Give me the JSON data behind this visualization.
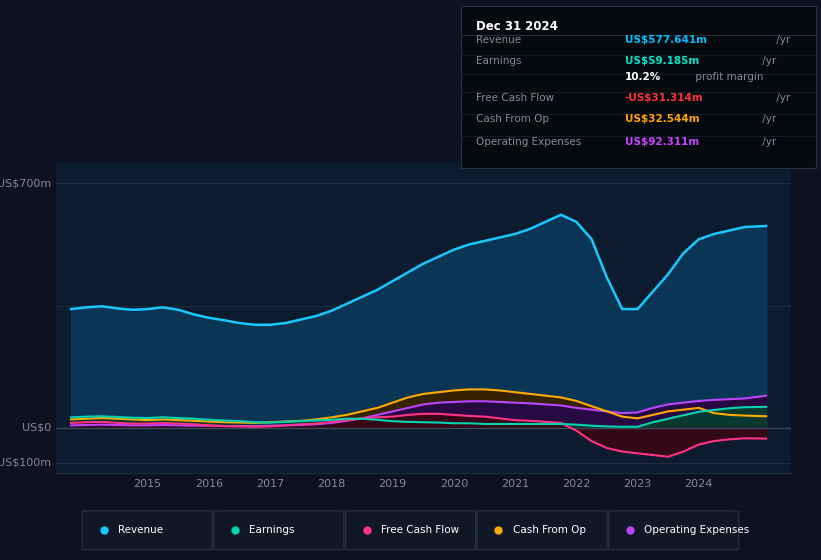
{
  "bg_color": "#0c1220",
  "plot_bg_color": "#0d1b2e",
  "title_box_bg": "#080c10",
  "title_box": {
    "date": "Dec 31 2024",
    "rows": [
      {
        "label": "Revenue",
        "value": "US$577.641m",
        "unit": " /yr",
        "value_color": "#00bfff"
      },
      {
        "label": "Earnings",
        "value": "US$59.185m",
        "unit": " /yr",
        "value_color": "#00e5cc"
      },
      {
        "label": "",
        "value": "10.2%",
        "unit": " profit margin",
        "value_color": "#ffffff"
      },
      {
        "label": "Free Cash Flow",
        "value": "-US$31.314m",
        "unit": " /yr",
        "value_color": "#ff3333"
      },
      {
        "label": "Cash From Op",
        "value": "US$32.544m",
        "unit": " /yr",
        "value_color": "#ffa500"
      },
      {
        "label": "Operating Expenses",
        "value": "US$92.311m",
        "unit": " /yr",
        "value_color": "#cc44ff"
      }
    ]
  },
  "y_label_top": "US$700m",
  "y_label_zero": "US$0",
  "y_label_neg": "-US$100m",
  "x_ticks": [
    "2015",
    "2016",
    "2017",
    "2018",
    "2019",
    "2020",
    "2021",
    "2022",
    "2023",
    "2024"
  ],
  "ylim": [
    -130,
    760
  ],
  "xlim": [
    2013.5,
    2025.5
  ],
  "revenue": {
    "x": [
      2013.75,
      2014.0,
      2014.25,
      2014.5,
      2014.75,
      2015.0,
      2015.25,
      2015.5,
      2015.75,
      2016.0,
      2016.25,
      2016.5,
      2016.75,
      2017.0,
      2017.25,
      2017.5,
      2017.75,
      2018.0,
      2018.25,
      2018.5,
      2018.75,
      2019.0,
      2019.25,
      2019.5,
      2019.75,
      2020.0,
      2020.25,
      2020.5,
      2020.75,
      2021.0,
      2021.25,
      2021.5,
      2021.75,
      2022.0,
      2022.25,
      2022.5,
      2022.75,
      2023.0,
      2023.25,
      2023.5,
      2023.75,
      2024.0,
      2024.25,
      2024.5,
      2024.75,
      2025.1
    ],
    "y": [
      340,
      345,
      348,
      342,
      338,
      340,
      345,
      338,
      325,
      315,
      308,
      300,
      295,
      295,
      300,
      310,
      320,
      335,
      355,
      375,
      395,
      420,
      445,
      470,
      490,
      510,
      525,
      535,
      545,
      555,
      570,
      590,
      610,
      590,
      540,
      430,
      340,
      340,
      390,
      440,
      500,
      540,
      555,
      565,
      575,
      578
    ],
    "color": "#18c8ff",
    "fill_color": "#0a3555",
    "linewidth": 1.8
  },
  "earnings": {
    "x": [
      2013.75,
      2014.0,
      2014.25,
      2014.5,
      2014.75,
      2015.0,
      2015.25,
      2015.5,
      2015.75,
      2016.0,
      2016.25,
      2016.5,
      2016.75,
      2017.0,
      2017.25,
      2017.5,
      2017.75,
      2018.0,
      2018.25,
      2018.5,
      2018.75,
      2019.0,
      2019.25,
      2019.5,
      2019.75,
      2020.0,
      2020.25,
      2020.5,
      2020.75,
      2021.0,
      2021.25,
      2021.5,
      2021.75,
      2022.0,
      2022.25,
      2022.5,
      2022.75,
      2023.0,
      2023.25,
      2023.5,
      2023.75,
      2024.0,
      2024.25,
      2024.5,
      2024.75,
      2025.1
    ],
    "y": [
      30,
      32,
      33,
      31,
      29,
      28,
      30,
      28,
      26,
      23,
      21,
      19,
      16,
      15,
      17,
      19,
      21,
      23,
      26,
      26,
      23,
      19,
      17,
      16,
      15,
      13,
      13,
      11,
      11,
      11,
      11,
      11,
      11,
      9,
      6,
      4,
      3,
      3,
      16,
      26,
      36,
      46,
      51,
      56,
      59,
      60
    ],
    "color": "#00d4b0",
    "fill_color": "#083830",
    "linewidth": 1.5
  },
  "free_cash_flow": {
    "x": [
      2013.75,
      2014.0,
      2014.25,
      2014.5,
      2014.75,
      2015.0,
      2015.25,
      2015.5,
      2015.75,
      2016.0,
      2016.25,
      2016.5,
      2016.75,
      2017.0,
      2017.25,
      2017.5,
      2017.75,
      2018.0,
      2018.25,
      2018.5,
      2018.75,
      2019.0,
      2019.25,
      2019.5,
      2019.75,
      2020.0,
      2020.25,
      2020.5,
      2020.75,
      2021.0,
      2021.25,
      2021.5,
      2021.75,
      2022.0,
      2022.25,
      2022.5,
      2022.75,
      2023.0,
      2023.25,
      2023.5,
      2023.75,
      2024.0,
      2024.25,
      2024.5,
      2024.75,
      2025.1
    ],
    "y": [
      14,
      16,
      17,
      14,
      12,
      12,
      14,
      12,
      10,
      7,
      5,
      4,
      3,
      4,
      7,
      10,
      12,
      17,
      22,
      27,
      30,
      32,
      37,
      40,
      40,
      37,
      34,
      32,
      27,
      22,
      20,
      17,
      14,
      -8,
      -38,
      -58,
      -68,
      -73,
      -78,
      -83,
      -68,
      -48,
      -38,
      -33,
      -30,
      -31
    ],
    "color": "#ff3388",
    "fill_color": "#350818",
    "linewidth": 1.5
  },
  "cash_from_op": {
    "x": [
      2013.75,
      2014.0,
      2014.25,
      2014.5,
      2014.75,
      2015.0,
      2015.25,
      2015.5,
      2015.75,
      2016.0,
      2016.25,
      2016.5,
      2016.75,
      2017.0,
      2017.25,
      2017.5,
      2017.75,
      2018.0,
      2018.25,
      2018.5,
      2018.75,
      2019.0,
      2019.25,
      2019.5,
      2019.75,
      2020.0,
      2020.25,
      2020.5,
      2020.75,
      2021.0,
      2021.25,
      2021.5,
      2021.75,
      2022.0,
      2022.25,
      2022.5,
      2022.75,
      2023.0,
      2023.25,
      2023.5,
      2023.75,
      2024.0,
      2024.25,
      2024.5,
      2024.75,
      2025.1
    ],
    "y": [
      24,
      26,
      28,
      26,
      24,
      22,
      24,
      22,
      20,
      18,
      16,
      15,
      14,
      16,
      18,
      20,
      24,
      30,
      37,
      47,
      57,
      72,
      87,
      97,
      102,
      107,
      110,
      110,
      107,
      102,
      97,
      92,
      87,
      77,
      62,
      47,
      32,
      27,
      37,
      47,
      52,
      57,
      42,
      37,
      35,
      33
    ],
    "color": "#ffaa00",
    "fill_color": "#352200",
    "linewidth": 1.5
  },
  "operating_expenses": {
    "x": [
      2013.75,
      2014.0,
      2014.25,
      2014.5,
      2014.75,
      2015.0,
      2015.25,
      2015.5,
      2015.75,
      2016.0,
      2016.25,
      2016.5,
      2016.75,
      2017.0,
      2017.25,
      2017.5,
      2017.75,
      2018.0,
      2018.25,
      2018.5,
      2018.75,
      2019.0,
      2019.25,
      2019.5,
      2019.75,
      2020.0,
      2020.25,
      2020.5,
      2020.75,
      2021.0,
      2021.25,
      2021.5,
      2021.75,
      2022.0,
      2022.25,
      2022.5,
      2022.75,
      2023.0,
      2023.25,
      2023.5,
      2023.75,
      2024.0,
      2024.25,
      2024.5,
      2024.75,
      2025.1
    ],
    "y": [
      7,
      8,
      9,
      8,
      7,
      7,
      8,
      7,
      6,
      6,
      5,
      5,
      5,
      6,
      7,
      8,
      10,
      14,
      20,
      27,
      37,
      47,
      57,
      67,
      72,
      74,
      76,
      76,
      74,
      72,
      70,
      67,
      64,
      57,
      52,
      47,
      42,
      44,
      57,
      67,
      72,
      77,
      80,
      82,
      84,
      92
    ],
    "color": "#bb44ff",
    "fill_color": "#280a42",
    "linewidth": 1.5
  },
  "legend": [
    {
      "label": "Revenue",
      "color": "#18c8ff"
    },
    {
      "label": "Earnings",
      "color": "#00d4b0"
    },
    {
      "label": "Free Cash Flow",
      "color": "#ff3388"
    },
    {
      "label": "Cash From Op",
      "color": "#ffaa00"
    },
    {
      "label": "Operating Expenses",
      "color": "#bb44ff"
    }
  ]
}
